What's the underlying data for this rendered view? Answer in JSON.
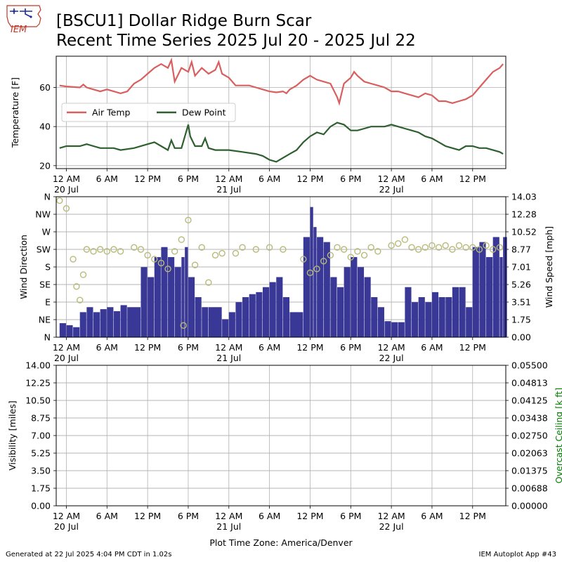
{
  "header": {
    "logo_text": "IEM",
    "title_line1": "[BSCU1] Dollar Ridge Burn Scar",
    "title_line2": "Recent Time Series 2025 Jul 20 - 2025 Jul 22"
  },
  "footer": {
    "generated": "Generated at 22 Jul 2025 4:04 PM CDT in 1.02s",
    "app": "IEM Autoplot App #43"
  },
  "colors": {
    "air_temp": "#d95f5f",
    "dew_point": "#2e5f2e",
    "wind_speed_bars": "#393896",
    "wind_direction_markers": "#b8ba78",
    "grid": "#b0b0b0",
    "ceiling_label": "#008000"
  },
  "x_axis": {
    "tick_labels": [
      "12 AM",
      "6 AM",
      "12 PM",
      "6 PM",
      "12 AM",
      "6 AM",
      "12 PM",
      "6 PM",
      "12 AM",
      "6 AM",
      "12 PM"
    ],
    "tick_hours": [
      0,
      6,
      12,
      18,
      24,
      30,
      36,
      42,
      48,
      54,
      60
    ],
    "date_labels": [
      {
        "hour": 0,
        "text": "20 Jul"
      },
      {
        "hour": 24,
        "text": "21 Jul"
      },
      {
        "hour": 48,
        "text": "22 Jul"
      }
    ],
    "range_hours": [
      -1.5,
      64.9
    ],
    "xlabel": "Plot Time Zone: America/Denver"
  },
  "chart_data": [
    {
      "type": "line",
      "ylabel": "Temperature [F]",
      "ylim": [
        18.5,
        76
      ],
      "yticks": [
        20,
        40,
        60
      ],
      "grid": true,
      "legend_placement": "center-left",
      "series": [
        {
          "name": "Air Temp",
          "points": [
            [
              -1,
              61
            ],
            [
              0,
              60.5
            ],
            [
              2,
              60
            ],
            [
              2.5,
              61.5
            ],
            [
              3,
              60
            ],
            [
              4,
              59
            ],
            [
              5,
              58
            ],
            [
              6,
              59
            ],
            [
              7,
              58
            ],
            [
              8,
              57
            ],
            [
              9,
              58
            ],
            [
              10,
              62
            ],
            [
              11,
              64
            ],
            [
              12,
              67
            ],
            [
              13,
              70
            ],
            [
              14,
              72
            ],
            [
              15,
              70
            ],
            [
              15.5,
              74
            ],
            [
              16,
              63
            ],
            [
              17,
              70
            ],
            [
              18,
              68
            ],
            [
              18.5,
              73
            ],
            [
              19,
              66
            ],
            [
              20,
              70
            ],
            [
              21,
              67
            ],
            [
              22,
              69
            ],
            [
              22.5,
              73
            ],
            [
              23,
              67
            ],
            [
              24,
              65
            ],
            [
              25,
              61
            ],
            [
              27,
              61
            ],
            [
              28,
              60
            ],
            [
              29,
              59
            ],
            [
              30,
              58
            ],
            [
              31,
              57.5
            ],
            [
              32,
              58
            ],
            [
              32.5,
              57
            ],
            [
              33,
              59
            ],
            [
              34,
              61
            ],
            [
              35,
              64
            ],
            [
              36,
              66
            ],
            [
              37,
              64
            ],
            [
              38,
              63
            ],
            [
              39,
              62
            ],
            [
              40,
              55
            ],
            [
              40.3,
              52
            ],
            [
              41,
              62
            ],
            [
              42,
              65
            ],
            [
              42.5,
              68
            ],
            [
              43,
              66
            ],
            [
              44,
              63
            ],
            [
              45,
              62
            ],
            [
              46,
              61
            ],
            [
              47,
              60
            ],
            [
              48,
              58
            ],
            [
              49,
              58
            ],
            [
              50,
              57
            ],
            [
              51,
              56
            ],
            [
              52,
              55
            ],
            [
              53,
              57
            ],
            [
              54,
              56
            ],
            [
              55,
              53
            ],
            [
              56,
              53
            ],
            [
              57,
              52
            ],
            [
              58,
              53
            ],
            [
              59,
              54
            ],
            [
              60,
              56
            ],
            [
              61,
              60
            ],
            [
              62,
              64
            ],
            [
              63,
              68
            ],
            [
              64,
              70
            ],
            [
              64.5,
              72
            ]
          ]
        },
        {
          "name": "Dew Point",
          "points": [
            [
              -1,
              29
            ],
            [
              0,
              30
            ],
            [
              2,
              30
            ],
            [
              3,
              31
            ],
            [
              5,
              29
            ],
            [
              7,
              29
            ],
            [
              8,
              28
            ],
            [
              10,
              29
            ],
            [
              12,
              31
            ],
            [
              13,
              32
            ],
            [
              14,
              30
            ],
            [
              15,
              28
            ],
            [
              15.5,
              33
            ],
            [
              16,
              29
            ],
            [
              17,
              29
            ],
            [
              18,
              41
            ],
            [
              18.3,
              35
            ],
            [
              19,
              30
            ],
            [
              20,
              30
            ],
            [
              20.5,
              34
            ],
            [
              21,
              29
            ],
            [
              22,
              28
            ],
            [
              24,
              28
            ],
            [
              26,
              27
            ],
            [
              28,
              26
            ],
            [
              29,
              25
            ],
            [
              30,
              23
            ],
            [
              31,
              22
            ],
            [
              32,
              24
            ],
            [
              33,
              26
            ],
            [
              34,
              28
            ],
            [
              35,
              32
            ],
            [
              36,
              35
            ],
            [
              37,
              37
            ],
            [
              38,
              36
            ],
            [
              39,
              40
            ],
            [
              40,
              42
            ],
            [
              41,
              41
            ],
            [
              42,
              38
            ],
            [
              43,
              38
            ],
            [
              44,
              39
            ],
            [
              45,
              40
            ],
            [
              46,
              40
            ],
            [
              47,
              40
            ],
            [
              48,
              41
            ],
            [
              49,
              40
            ],
            [
              50,
              39
            ],
            [
              51,
              38
            ],
            [
              52,
              37
            ],
            [
              53,
              35
            ],
            [
              54,
              34
            ],
            [
              55,
              32
            ],
            [
              56,
              30
            ],
            [
              57,
              29
            ],
            [
              58,
              28
            ],
            [
              59,
              30
            ],
            [
              60,
              30
            ],
            [
              61,
              29
            ],
            [
              62,
              29
            ],
            [
              63,
              28
            ],
            [
              64,
              27
            ],
            [
              64.5,
              26
            ]
          ]
        }
      ]
    },
    {
      "type": "bar",
      "ylabel": "Wind Direction",
      "y2label": "Wind Speed [mph]",
      "y_direction_labels": [
        "N",
        "NE",
        "E",
        "SE",
        "S",
        "SW",
        "W",
        "NW",
        "N"
      ],
      "y_direction_degrees": [
        0,
        45,
        90,
        135,
        180,
        225,
        270,
        315,
        360
      ],
      "y2ticks": [
        "0.00",
        "1.75",
        "3.51",
        "5.26",
        "7.01",
        "8.77",
        "10.52",
        "12.28",
        "14.03"
      ],
      "y2lim": [
        0,
        14.03
      ],
      "grid": true,
      "series": [
        {
          "name": "",
          "kind": "wind_speed_bars",
          "points": [
            [
              -1,
              1.4
            ],
            [
              0,
              1.2
            ],
            [
              1,
              1
            ],
            [
              2,
              2.5
            ],
            [
              3,
              3
            ],
            [
              4,
              2.5
            ],
            [
              5,
              2.8
            ],
            [
              6,
              3
            ],
            [
              7,
              2.6
            ],
            [
              8,
              3.2
            ],
            [
              9,
              3
            ],
            [
              11,
              7
            ],
            [
              12,
              6
            ],
            [
              13,
              8
            ],
            [
              14,
              9
            ],
            [
              15,
              8
            ],
            [
              16,
              7
            ],
            [
              17,
              8
            ],
            [
              17.5,
              9
            ],
            [
              18,
              6
            ],
            [
              19,
              4
            ],
            [
              20,
              3
            ],
            [
              21,
              3
            ],
            [
              23,
              1.8
            ],
            [
              24,
              2.5
            ],
            [
              25,
              3.5
            ],
            [
              26,
              4
            ],
            [
              27,
              4.3
            ],
            [
              28,
              4.5
            ],
            [
              29,
              5
            ],
            [
              30,
              5.5
            ],
            [
              31,
              6
            ],
            [
              32,
              4
            ],
            [
              33,
              2.5
            ],
            [
              35,
              10
            ],
            [
              36,
              13
            ],
            [
              36.5,
              11
            ],
            [
              37,
              10
            ],
            [
              38,
              9.5
            ],
            [
              39,
              6
            ],
            [
              40,
              5
            ],
            [
              41,
              7
            ],
            [
              42,
              8
            ],
            [
              43,
              7
            ],
            [
              44,
              6
            ],
            [
              45,
              4
            ],
            [
              46,
              3
            ],
            [
              47,
              1.6
            ],
            [
              48,
              1.5
            ],
            [
              49,
              1.5
            ],
            [
              50,
              5
            ],
            [
              51,
              3.5
            ],
            [
              52,
              4
            ],
            [
              53,
              3.5
            ],
            [
              54,
              4.5
            ],
            [
              55,
              4
            ],
            [
              56,
              4
            ],
            [
              57,
              5
            ],
            [
              58,
              5
            ],
            [
              59,
              3
            ],
            [
              60,
              9
            ],
            [
              61,
              9.5
            ],
            [
              62,
              8
            ],
            [
              63,
              10
            ],
            [
              64,
              8
            ],
            [
              64.5,
              10
            ]
          ]
        },
        {
          "name": "",
          "kind": "wind_direction_markers",
          "points": [
            [
              -1,
              350
            ],
            [
              0,
              330
            ],
            [
              1,
              200
            ],
            [
              1.5,
              130
            ],
            [
              2,
              95
            ],
            [
              2.5,
              160
            ],
            [
              3,
              225
            ],
            [
              4,
              220
            ],
            [
              5,
              225
            ],
            [
              6,
              220
            ],
            [
              7,
              225
            ],
            [
              8,
              220
            ],
            [
              10,
              230
            ],
            [
              11,
              225
            ],
            [
              12,
              210
            ],
            [
              13,
              200
            ],
            [
              14,
              190
            ],
            [
              15,
              175
            ],
            [
              16,
              220
            ],
            [
              17,
              250
            ],
            [
              17.3,
              30
            ],
            [
              18,
              300
            ],
            [
              19,
              185
            ],
            [
              20,
              230
            ],
            [
              21,
              140
            ],
            [
              22,
              210
            ],
            [
              23,
              215
            ],
            [
              25,
              215
            ],
            [
              26,
              230
            ],
            [
              28,
              225
            ],
            [
              30,
              230
            ],
            [
              32,
              225
            ],
            [
              35,
              200
            ],
            [
              36,
              165
            ],
            [
              37,
              175
            ],
            [
              38,
              195
            ],
            [
              39,
              210
            ],
            [
              40,
              230
            ],
            [
              41,
              225
            ],
            [
              42,
              205
            ],
            [
              43,
              220
            ],
            [
              44,
              210
            ],
            [
              45,
              230
            ],
            [
              46,
              220
            ],
            [
              48,
              235
            ],
            [
              49,
              240
            ],
            [
              50,
              250
            ],
            [
              51,
              230
            ],
            [
              52,
              225
            ],
            [
              53,
              230
            ],
            [
              54,
              235
            ],
            [
              55,
              230
            ],
            [
              56,
              235
            ],
            [
              57,
              225
            ],
            [
              58,
              235
            ],
            [
              59,
              230
            ],
            [
              60,
              230
            ],
            [
              61,
              225
            ],
            [
              62,
              235
            ],
            [
              63,
              225
            ],
            [
              64,
              230
            ]
          ]
        }
      ]
    },
    {
      "type": "line",
      "ylabel": "Visibility [miles]",
      "y2label": "Overcast Ceiling [k ft]",
      "yticks": [
        "0.00",
        "1.75",
        "3.50",
        "5.25",
        "7.00",
        "8.75",
        "10.50",
        "12.25",
        "14.00"
      ],
      "ylim": [
        0,
        14
      ],
      "y2ticks": [
        "0.00000",
        "0.00688",
        "0.01375",
        "0.02063",
        "0.02750",
        "0.03438",
        "0.04125",
        "0.04813",
        "0.05500"
      ],
      "y2lim": [
        0,
        0.055
      ],
      "grid": true,
      "series": []
    }
  ]
}
